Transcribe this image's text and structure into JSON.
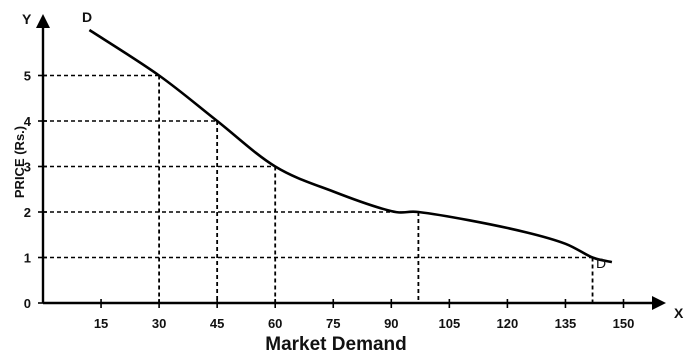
{
  "chart_data": {
    "type": "line",
    "title": "",
    "xlabel": "Market Demand",
    "ylabel": "PRICE (Rs.)",
    "x_axis_letter": "X",
    "y_axis_letter": "Y",
    "curve_label_start": "D",
    "curve_label_end": "D",
    "xlim": [
      0,
      155
    ],
    "ylim": [
      0,
      6
    ],
    "x_ticks": [
      "15",
      "30",
      "45",
      "60",
      "75",
      "90",
      "105",
      "120",
      "135",
      "150"
    ],
    "x_tick_values": [
      15,
      30,
      45,
      60,
      75,
      90,
      105,
      120,
      135,
      150
    ],
    "y_ticks": [
      "0",
      "1",
      "2",
      "3",
      "4",
      "5"
    ],
    "y_tick_values": [
      0,
      1,
      2,
      3,
      4,
      5
    ],
    "series": [
      {
        "name": "D",
        "x": [
          12,
          30,
          45,
          60,
          75,
          90,
          97,
          110,
          125,
          135,
          142,
          147
        ],
        "y": [
          6.0,
          5.0,
          4.0,
          3.0,
          2.45,
          2.02,
          2.0,
          1.82,
          1.55,
          1.3,
          1.0,
          0.9
        ]
      }
    ],
    "dashed_guides": [
      {
        "x": 30,
        "y": 5
      },
      {
        "x": 45,
        "y": 4
      },
      {
        "x": 60,
        "y": 3
      },
      {
        "x": 97,
        "y": 2
      },
      {
        "x": 142,
        "y": 1
      }
    ],
    "grid": false,
    "colors": {
      "line": "#000000",
      "text": "#111111"
    }
  }
}
